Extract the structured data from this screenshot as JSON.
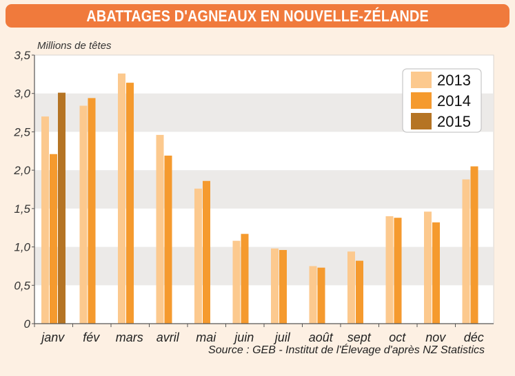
{
  "title": "ABATTAGES D'AGNEAUX EN NOUVELLE-ZÉLANDE",
  "source": "Source : GEB - Institut de l'Élevage d'après NZ Statistics",
  "colors": {
    "title_bg": "#f07a3c",
    "page_bg": "#fdf0e3",
    "band_light": "#ffffff",
    "band_dark": "#eceae8",
    "series_2013": "#fcc98e",
    "series_2014": "#f59a2e",
    "series_2015": "#b57424"
  },
  "chart_data": {
    "type": "bar",
    "title": "ABATTAGES D'AGNEAUX EN NOUVELLE-ZÉLANDE",
    "xlabel": "",
    "ylabel": "Millions de têtes",
    "ylim": [
      0,
      3.5
    ],
    "yticks": [
      "0",
      "0,5",
      "1,0",
      "1,5",
      "2,0",
      "2,5",
      "3,0",
      "3,5"
    ],
    "grid": "alternating horizontal bands",
    "legend_position": "top-right",
    "categories": [
      "janv",
      "fév",
      "mars",
      "avril",
      "mai",
      "juin",
      "juil",
      "août",
      "sept",
      "oct",
      "nov",
      "déc"
    ],
    "series": [
      {
        "name": "2013",
        "color": "#fcc98e",
        "values": [
          2.7,
          2.84,
          3.26,
          2.46,
          1.76,
          1.08,
          0.98,
          0.75,
          0.94,
          1.4,
          1.46,
          1.88
        ]
      },
      {
        "name": "2014",
        "color": "#f59a2e",
        "values": [
          2.21,
          2.94,
          3.14,
          2.19,
          1.86,
          1.17,
          0.96,
          0.73,
          0.82,
          1.38,
          1.32,
          2.05
        ]
      },
      {
        "name": "2015",
        "color": "#b57424",
        "values": [
          3.01,
          null,
          null,
          null,
          null,
          null,
          null,
          null,
          null,
          null,
          null,
          null
        ]
      }
    ]
  }
}
